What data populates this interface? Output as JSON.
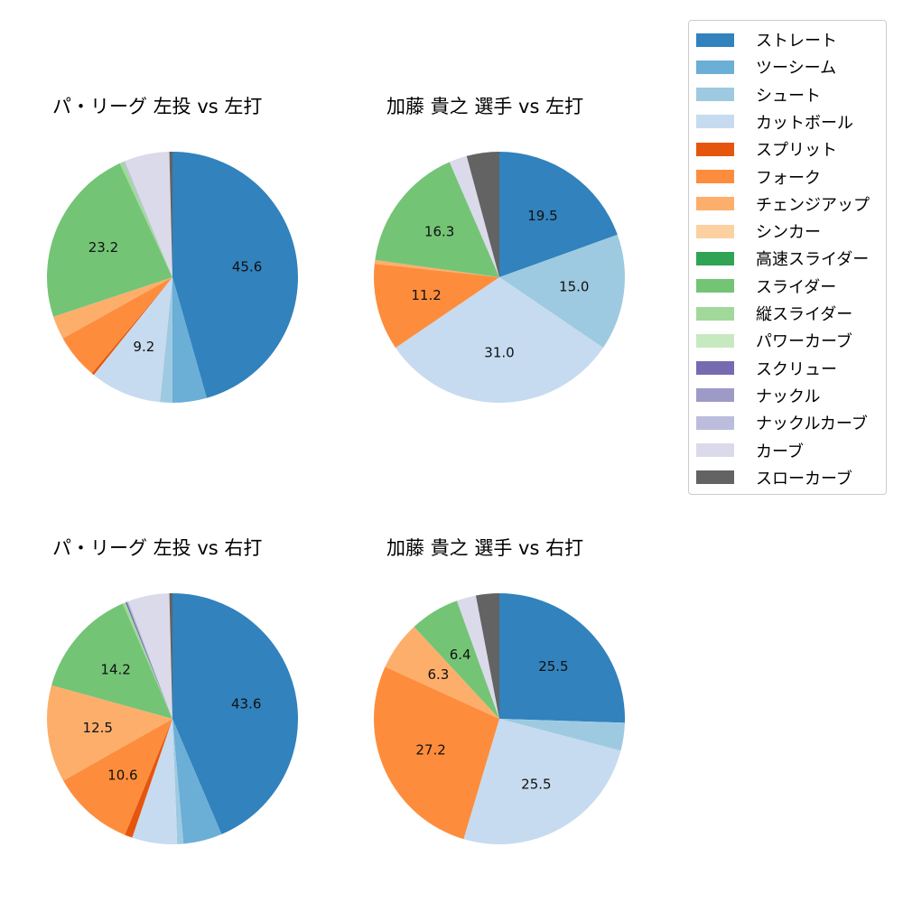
{
  "legend": {
    "items": [
      {
        "label": "ストレート",
        "color": "#3182bd"
      },
      {
        "label": "ツーシーム",
        "color": "#6baed6"
      },
      {
        "label": "シュート",
        "color": "#9ecae1"
      },
      {
        "label": "カットボール",
        "color": "#c6dbef"
      },
      {
        "label": "スプリット",
        "color": "#e6550d"
      },
      {
        "label": "フォーク",
        "color": "#fd8d3c"
      },
      {
        "label": "チェンジアップ",
        "color": "#fdae6b"
      },
      {
        "label": "シンカー",
        "color": "#fdd0a2"
      },
      {
        "label": "高速スライダー",
        "color": "#31a354"
      },
      {
        "label": "スライダー",
        "color": "#74c476"
      },
      {
        "label": "縦スライダー",
        "color": "#a1d99b"
      },
      {
        "label": "パワーカーブ",
        "color": "#c7e9c0"
      },
      {
        "label": "スクリュー",
        "color": "#756bb1"
      },
      {
        "label": "ナックル",
        "color": "#9e9ac8"
      },
      {
        "label": "ナックルカーブ",
        "color": "#bcbddc"
      },
      {
        "label": "カーブ",
        "color": "#dadaeb"
      },
      {
        "label": "スローカーブ",
        "color": "#636363"
      }
    ]
  },
  "chart_data": [
    {
      "type": "pie",
      "title": "パ・リーグ 左投 vs 左打",
      "start_angle": 90,
      "direction": "clockwise",
      "label_threshold": 8,
      "categories": [
        "ストレート",
        "ツーシーム",
        "シュート",
        "カットボール",
        "スプリット",
        "フォーク",
        "チェンジアップ",
        "シンカー",
        "高速スライダー",
        "スライダー",
        "縦スライダー",
        "パワーカーブ",
        "スクリュー",
        "ナックル",
        "ナックルカーブ",
        "カーブ",
        "スローカーブ"
      ],
      "values": [
        45.6,
        4.4,
        1.6,
        9.2,
        0.3,
        5.8,
        3.0,
        0,
        0,
        23.2,
        0.5,
        0,
        0,
        0,
        0.2,
        5.8,
        0.4
      ],
      "labels_shown": [
        "45.6",
        "9.2",
        "23.2"
      ]
    },
    {
      "type": "pie",
      "title": "加藤 貴之 選手 vs 左打",
      "start_angle": 90,
      "direction": "clockwise",
      "label_threshold": 8,
      "categories": [
        "ストレート",
        "ツーシーム",
        "シュート",
        "カットボール",
        "スプリット",
        "フォーク",
        "チェンジアップ",
        "シンカー",
        "高速スライダー",
        "スライダー",
        "縦スライダー",
        "パワーカーブ",
        "スクリュー",
        "ナックル",
        "ナックルカーブ",
        "カーブ",
        "スローカーブ"
      ],
      "values": [
        19.5,
        0,
        15.0,
        31.0,
        0,
        11.2,
        0.5,
        0,
        0,
        16.3,
        0,
        0,
        0,
        0,
        0,
        2.3,
        4.2
      ],
      "labels_shown": [
        "19.5",
        "15.0",
        "31.0",
        "11.2",
        "16.3"
      ]
    },
    {
      "type": "pie",
      "title": "パ・リーグ 左投 vs 右打",
      "start_angle": 90,
      "direction": "clockwise",
      "label_threshold": 8,
      "categories": [
        "ストレート",
        "ツーシーム",
        "シュート",
        "カットボール",
        "スプリット",
        "フォーク",
        "チェンジアップ",
        "シンカー",
        "高速スライダー",
        "スライダー",
        "縦スライダー",
        "パワーカーブ",
        "スクリュー",
        "ナックル",
        "ナックルカーブ",
        "カーブ",
        "スローカーブ"
      ],
      "values": [
        43.6,
        5.0,
        0.8,
        5.8,
        1.0,
        10.6,
        12.5,
        0,
        0,
        14.2,
        0.4,
        0,
        0.2,
        0,
        0.2,
        5.3,
        0.4
      ],
      "labels_shown": [
        "43.6",
        "10.6",
        "12.5",
        "14.2"
      ]
    },
    {
      "type": "pie",
      "title": "加藤 貴之 選手 vs 右打",
      "start_angle": 90,
      "direction": "clockwise",
      "label_threshold": 6,
      "categories": [
        "ストレート",
        "ツーシーム",
        "シュート",
        "カットボール",
        "スプリット",
        "フォーク",
        "チェンジアップ",
        "シンカー",
        "高速スライダー",
        "スライダー",
        "縦スライダー",
        "パワーカーブ",
        "スクリュー",
        "ナックル",
        "ナックルカーブ",
        "カーブ",
        "スローカーブ"
      ],
      "values": [
        25.5,
        0,
        3.6,
        25.5,
        0,
        27.2,
        6.3,
        0,
        0,
        6.4,
        0,
        0,
        0,
        0,
        0,
        2.5,
        3.0
      ],
      "labels_shown": [
        "25.5",
        "25.5",
        "27.2",
        "6.3",
        "6.4"
      ]
    }
  ]
}
